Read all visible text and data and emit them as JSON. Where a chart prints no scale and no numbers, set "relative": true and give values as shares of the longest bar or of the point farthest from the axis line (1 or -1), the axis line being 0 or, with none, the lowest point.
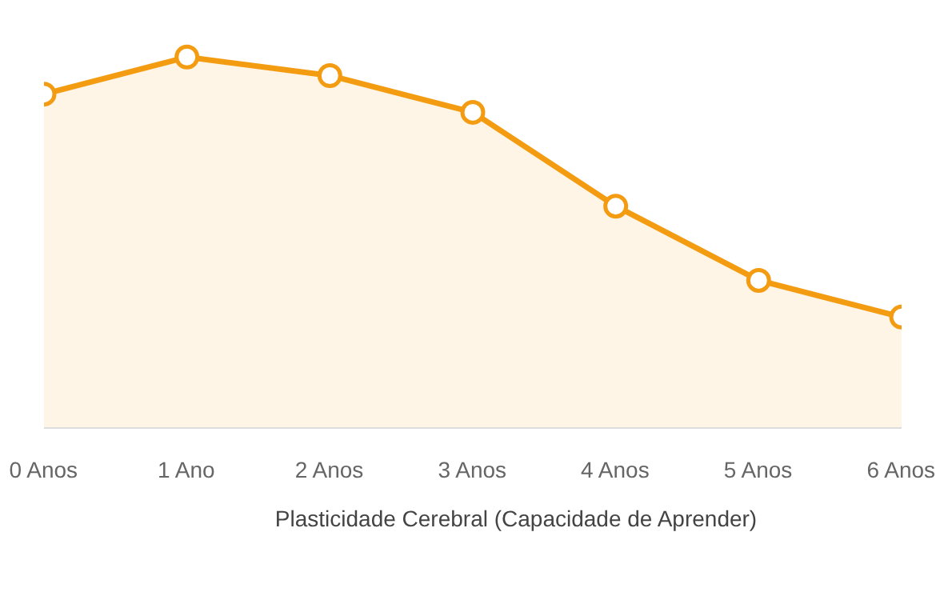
{
  "chart_data": {
    "type": "area",
    "relative": true,
    "categories": [
      "0 Anos",
      "1 Ano",
      "2 Anos",
      "3 Anos",
      "4 Anos",
      "5 Anos",
      "6 Anos"
    ],
    "series": [
      {
        "name": "Plasticidade Cerebral (Capacidade de Aprender)",
        "color": "#f39c12",
        "values": [
          0.9,
          1,
          0.95,
          0.851,
          0.598,
          0.398,
          0.299
        ]
      }
    ],
    "marker": "circle",
    "legend": "bottom",
    "grid": false
  }
}
